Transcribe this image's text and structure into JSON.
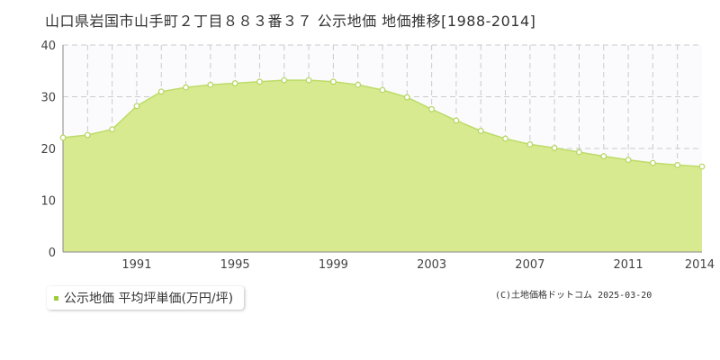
{
  "title": "山口県岩国市山手町２丁目８８３番３７ 公示地価 地価推移[1988-2014]",
  "legend": {
    "label": "公示地価 平均坪単価(万円/坪)"
  },
  "copyright": "(C)土地価格ドットコム 2025-03-20",
  "colors": {
    "area_fill": "#d8ea90",
    "line": "#bcdc68",
    "marker_fill": "#ffffff",
    "marker_stroke": "#b5d55e",
    "plot_bg": "#fbfafc",
    "grid": "#cccccc",
    "legend_marker": "#9dcc3b"
  },
  "chart_data": {
    "type": "area",
    "x": [
      1988,
      1989,
      1990,
      1991,
      1992,
      1993,
      1994,
      1995,
      1996,
      1997,
      1998,
      1999,
      2000,
      2001,
      2002,
      2003,
      2004,
      2005,
      2006,
      2007,
      2008,
      2009,
      2010,
      2011,
      2012,
      2013,
      2014
    ],
    "series": [
      {
        "name": "公示地価 平均坪単価(万円/坪)",
        "values": [
          22.1,
          22.6,
          23.7,
          28.2,
          31.0,
          31.8,
          32.3,
          32.6,
          32.9,
          33.2,
          33.2,
          32.9,
          32.3,
          31.3,
          29.9,
          27.6,
          25.4,
          23.4,
          21.9,
          20.8,
          20.1,
          19.3,
          18.5,
          17.8,
          17.2,
          16.8,
          16.5
        ]
      }
    ],
    "x_tick_labels": [
      "1991",
      "1995",
      "1999",
      "2003",
      "2007",
      "2011",
      "2014"
    ],
    "x_tick_values": [
      1991,
      1995,
      1999,
      2003,
      2007,
      2011,
      2014
    ],
    "y_tick_labels": [
      "0",
      "10",
      "20",
      "30",
      "40"
    ],
    "y_tick_values": [
      0,
      10,
      20,
      30,
      40
    ],
    "xlim": [
      1988,
      2014
    ],
    "ylim": [
      0,
      40
    ],
    "xlabel": "",
    "ylabel": "",
    "grid": true,
    "legend_position": "bottom-left"
  }
}
